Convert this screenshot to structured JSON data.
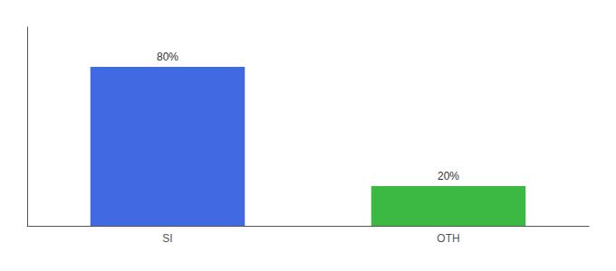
{
  "chart_data": {
    "type": "bar",
    "categories": [
      "SI",
      "OTH"
    ],
    "values": [
      80,
      20
    ],
    "value_labels": [
      "80%",
      "20%"
    ],
    "colors": [
      "#4169e1",
      "#3cb943"
    ],
    "ylim": [
      0,
      100
    ],
    "yticks": [],
    "grid": false,
    "tick_labels": "x",
    "data_labels": true
  }
}
